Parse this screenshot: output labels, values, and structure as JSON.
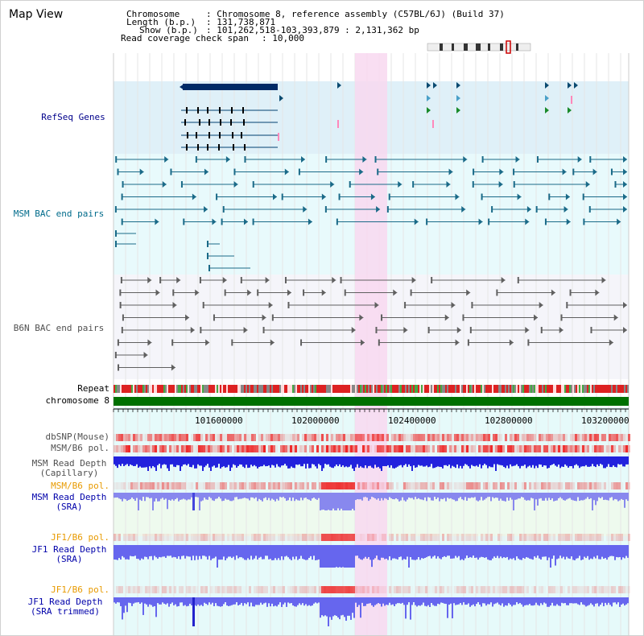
{
  "page": {
    "title": "Map View"
  },
  "info": {
    "chromosome_key": "Chromosome",
    "chromosome_value": ": Chromosome 8, reference assembly (C57BL/6J) (Build 37)",
    "length_key": "Length (b.p.)",
    "length_value": ": 131,738,871",
    "show_key": "Show (b.p.)",
    "show_value": ": 101,262,518-103,393,879 : 2,131,362 bp",
    "span_key": "Read coverage check span",
    "span_value": ": 10,000"
  },
  "tracks": {
    "refseq": "RefSeq Genes",
    "msm_bac": "MSM BAC end pairs",
    "b6n_bac": "B6N BAC end pairs",
    "repeat": "Repeat",
    "chromosome": "chromosome 8",
    "dbsnp": "dbSNP(Mouse)",
    "msm_b6_pol": "MSM/B6 pol.",
    "msm_read_depth_cap_1": "MSM Read Depth",
    "msm_read_depth_cap_2": "(Capillary)",
    "msm_b6_pol_2": "MSM/B6 pol.",
    "msm_read_depth_sra_1": "MSM Read Depth",
    "msm_read_depth_sra_2": "(SRA)",
    "jf1_b6_pol": "JF1/B6 pol.",
    "jf1_read_depth_sra_1": "JF1 Read Depth",
    "jf1_read_depth_sra_2": "(SRA)",
    "jf1_b6_pol_2": "JF1/B6 pol.",
    "jf1_read_depth_trim_1": "JF1 Read Depth",
    "jf1_read_depth_trim_2": "(SRA trimmed)"
  },
  "axis": {
    "ticks": [
      "101600000",
      "102000000",
      "102400000",
      "102800000",
      "103200000"
    ]
  },
  "colors": {
    "refseq_label": "#00008b",
    "msm_label": "#006b8b",
    "b6n_label": "#505050",
    "orange_label": "#e89a00",
    "blue_label": "#0000aa",
    "highlight": "#f8d8f0",
    "chromosome_bar": "#007000"
  }
}
